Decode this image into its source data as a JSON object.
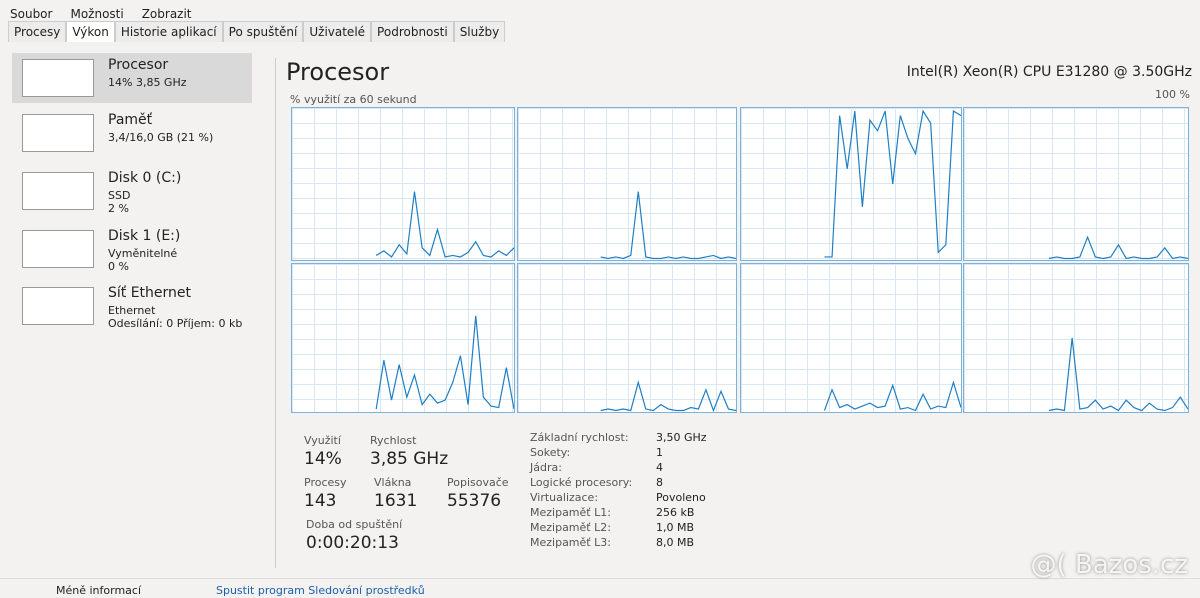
{
  "menu": [
    "Soubor",
    "Možnosti",
    "Zobrazit"
  ],
  "tabs": [
    "Procesy",
    "Výkon",
    "Historie aplikací",
    "Po spuštění",
    "Uživatelé",
    "Podrobnosti",
    "Služby"
  ],
  "sidebar": [
    {
      "title": "Procesor",
      "lines": [
        "14% 3,85 GHz"
      ]
    },
    {
      "title": "Paměť",
      "lines": [
        "3,4/16,0 GB (21 %)"
      ]
    },
    {
      "title": "Disk 0 (C:)",
      "lines": [
        "SSD",
        "2 %"
      ]
    },
    {
      "title": "Disk 1 (E:)",
      "lines": [
        "Vyměnitelné",
        "0 %"
      ]
    },
    {
      "title": "Síť Ethernet",
      "lines": [
        "Ethernet",
        "Odesílání: 0 Příjem: 0 kb"
      ]
    }
  ],
  "panel": {
    "title": "Procesor",
    "cpu_name": "Intel(R) Xeon(R) CPU E31280 @ 3.50GHz",
    "caption": "% využití za 60 sekund",
    "max_label": "100 %",
    "ylim": [
      0,
      100
    ],
    "color": "#1f7fc4",
    "cores": [
      [
        null,
        null,
        null,
        null,
        null,
        null,
        null,
        null,
        null,
        null,
        null,
        3,
        6,
        2,
        10,
        4,
        45,
        8,
        3,
        20,
        2,
        3,
        2,
        5,
        12,
        3,
        2,
        6,
        3,
        8
      ],
      [
        null,
        null,
        null,
        null,
        null,
        null,
        null,
        null,
        null,
        null,
        null,
        2,
        1,
        2,
        1,
        3,
        45,
        2,
        1,
        1,
        2,
        1,
        2,
        1,
        1,
        2,
        3,
        1,
        2,
        1
      ],
      [
        null,
        null,
        null,
        null,
        null,
        null,
        null,
        null,
        null,
        null,
        null,
        2,
        2,
        95,
        60,
        98,
        35,
        92,
        85,
        98,
        50,
        95,
        80,
        70,
        98,
        90,
        5,
        10,
        98,
        95
      ],
      [
        null,
        null,
        null,
        null,
        null,
        null,
        null,
        null,
        null,
        null,
        null,
        1,
        2,
        1,
        1,
        2,
        15,
        2,
        1,
        2,
        10,
        1,
        2,
        1,
        1,
        2,
        8,
        1,
        2,
        1
      ],
      [
        null,
        null,
        null,
        null,
        null,
        null,
        null,
        null,
        null,
        null,
        null,
        2,
        35,
        8,
        32,
        10,
        25,
        5,
        12,
        6,
        8,
        20,
        38,
        5,
        65,
        10,
        4,
        3,
        30,
        2
      ],
      [
        null,
        null,
        null,
        null,
        null,
        null,
        null,
        null,
        null,
        null,
        null,
        1,
        2,
        1,
        2,
        1,
        20,
        2,
        1,
        5,
        2,
        1,
        1,
        3,
        2,
        15,
        1,
        14,
        2,
        1
      ],
      [
        null,
        null,
        null,
        null,
        null,
        null,
        null,
        null,
        null,
        null,
        null,
        1,
        15,
        3,
        5,
        2,
        4,
        6,
        3,
        4,
        18,
        2,
        3,
        1,
        12,
        2,
        4,
        3,
        20,
        3
      ],
      [
        null,
        null,
        null,
        null,
        null,
        null,
        null,
        null,
        null,
        null,
        null,
        1,
        2,
        1,
        50,
        2,
        3,
        8,
        2,
        4,
        1,
        8,
        3,
        1,
        6,
        2,
        1,
        3,
        10,
        2
      ]
    ]
  },
  "stats": [
    {
      "label": "Využití",
      "value": "14%"
    },
    {
      "label": "Rychlost",
      "value": "3,85 GHz"
    },
    {
      "label": "Procesy",
      "value": "143"
    },
    {
      "label": "Vlákna",
      "value": "1631"
    },
    {
      "label": "Popisovače",
      "value": "55376"
    },
    {
      "label": "Doba od spuštění",
      "value": "0:00:20:13"
    }
  ],
  "details": [
    [
      "Základní rychlost:",
      "3,50 GHz"
    ],
    [
      "Sokety:",
      "1"
    ],
    [
      "Jádra:",
      "4"
    ],
    [
      "Logické procesory:",
      "8"
    ],
    [
      "Virtualizace:",
      "Povoleno"
    ],
    [
      "Mezipaměť L1:",
      "256 kB"
    ],
    [
      "Mezipaměť L2:",
      "1,0 MB"
    ],
    [
      "Mezipaměť L3:",
      "8,0 MB"
    ]
  ],
  "footer": [
    "Méně informací",
    "Spustit program Sledování prostředků"
  ],
  "watermark": "@( Bazos.cz"
}
